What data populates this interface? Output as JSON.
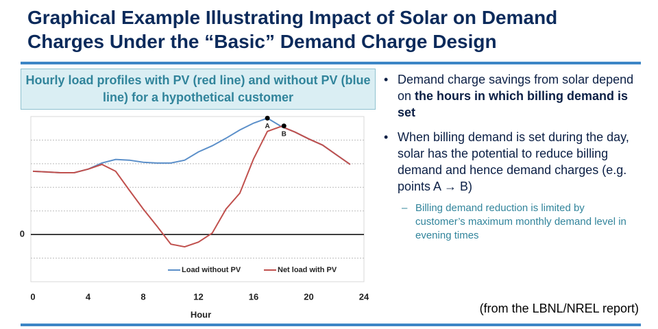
{
  "title": "Graphical Example Illustrating Impact of Solar on Demand Charges Under the “Basic” Demand Charge Design",
  "bullets": [
    {
      "parts": [
        "Demand charge savings from solar depend on ",
        "the hours in which billing demand is set"
      ]
    },
    {
      "parts": [
        "When billing demand is set during the day, solar has the potential to reduce billing demand and hence demand charges (e.g. points A → B)"
      ],
      "sub": [
        "Billing demand reduction is limited by customer’s maximum monthly demand level in evening times"
      ]
    }
  ],
  "source": "(from the LBNL/NREL report)",
  "chart_data": {
    "type": "line",
    "subtitle": "Hourly load profiles with PV (red line) and without PV (blue line) for a hypothetical customer",
    "x_label": "Hour",
    "x": [
      0,
      1,
      2,
      3,
      4,
      5,
      6,
      7,
      8,
      9,
      10,
      11,
      12,
      13,
      14,
      15,
      16,
      17,
      18,
      19,
      20,
      21,
      22,
      23
    ],
    "series": [
      {
        "name": "Load without PV",
        "color": "#5b8fc9",
        "values": [
          2.68,
          2.65,
          2.62,
          2.62,
          2.77,
          3.03,
          3.18,
          3.15,
          3.06,
          3.03,
          3.03,
          3.15,
          3.5,
          3.76,
          4.08,
          4.43,
          4.72,
          4.93,
          4.58,
          4.34,
          4.05,
          3.79,
          3.38,
          2.97
        ]
      },
      {
        "name": "Net load with PV",
        "color": "#c0504d",
        "values": [
          2.68,
          2.65,
          2.62,
          2.62,
          2.77,
          2.97,
          2.68,
          1.87,
          1.08,
          0.35,
          -0.41,
          -0.52,
          -0.32,
          0.06,
          1.08,
          1.75,
          3.21,
          4.37,
          4.58,
          4.34,
          4.05,
          3.79,
          3.38,
          2.97
        ]
      }
    ],
    "annotations": [
      {
        "text": "A",
        "x": 17,
        "y": 4.93
      },
      {
        "text": "B",
        "x": 18.2,
        "y": 4.6
      }
    ],
    "xlim": [
      0,
      24
    ],
    "xticks": [
      0,
      4,
      8,
      12,
      16,
      20,
      24
    ],
    "ylim": [
      -2,
      5
    ],
    "yticks": [
      0
    ],
    "ygrid": [
      -1,
      1,
      2,
      3,
      4
    ],
    "legend": "bottom"
  }
}
